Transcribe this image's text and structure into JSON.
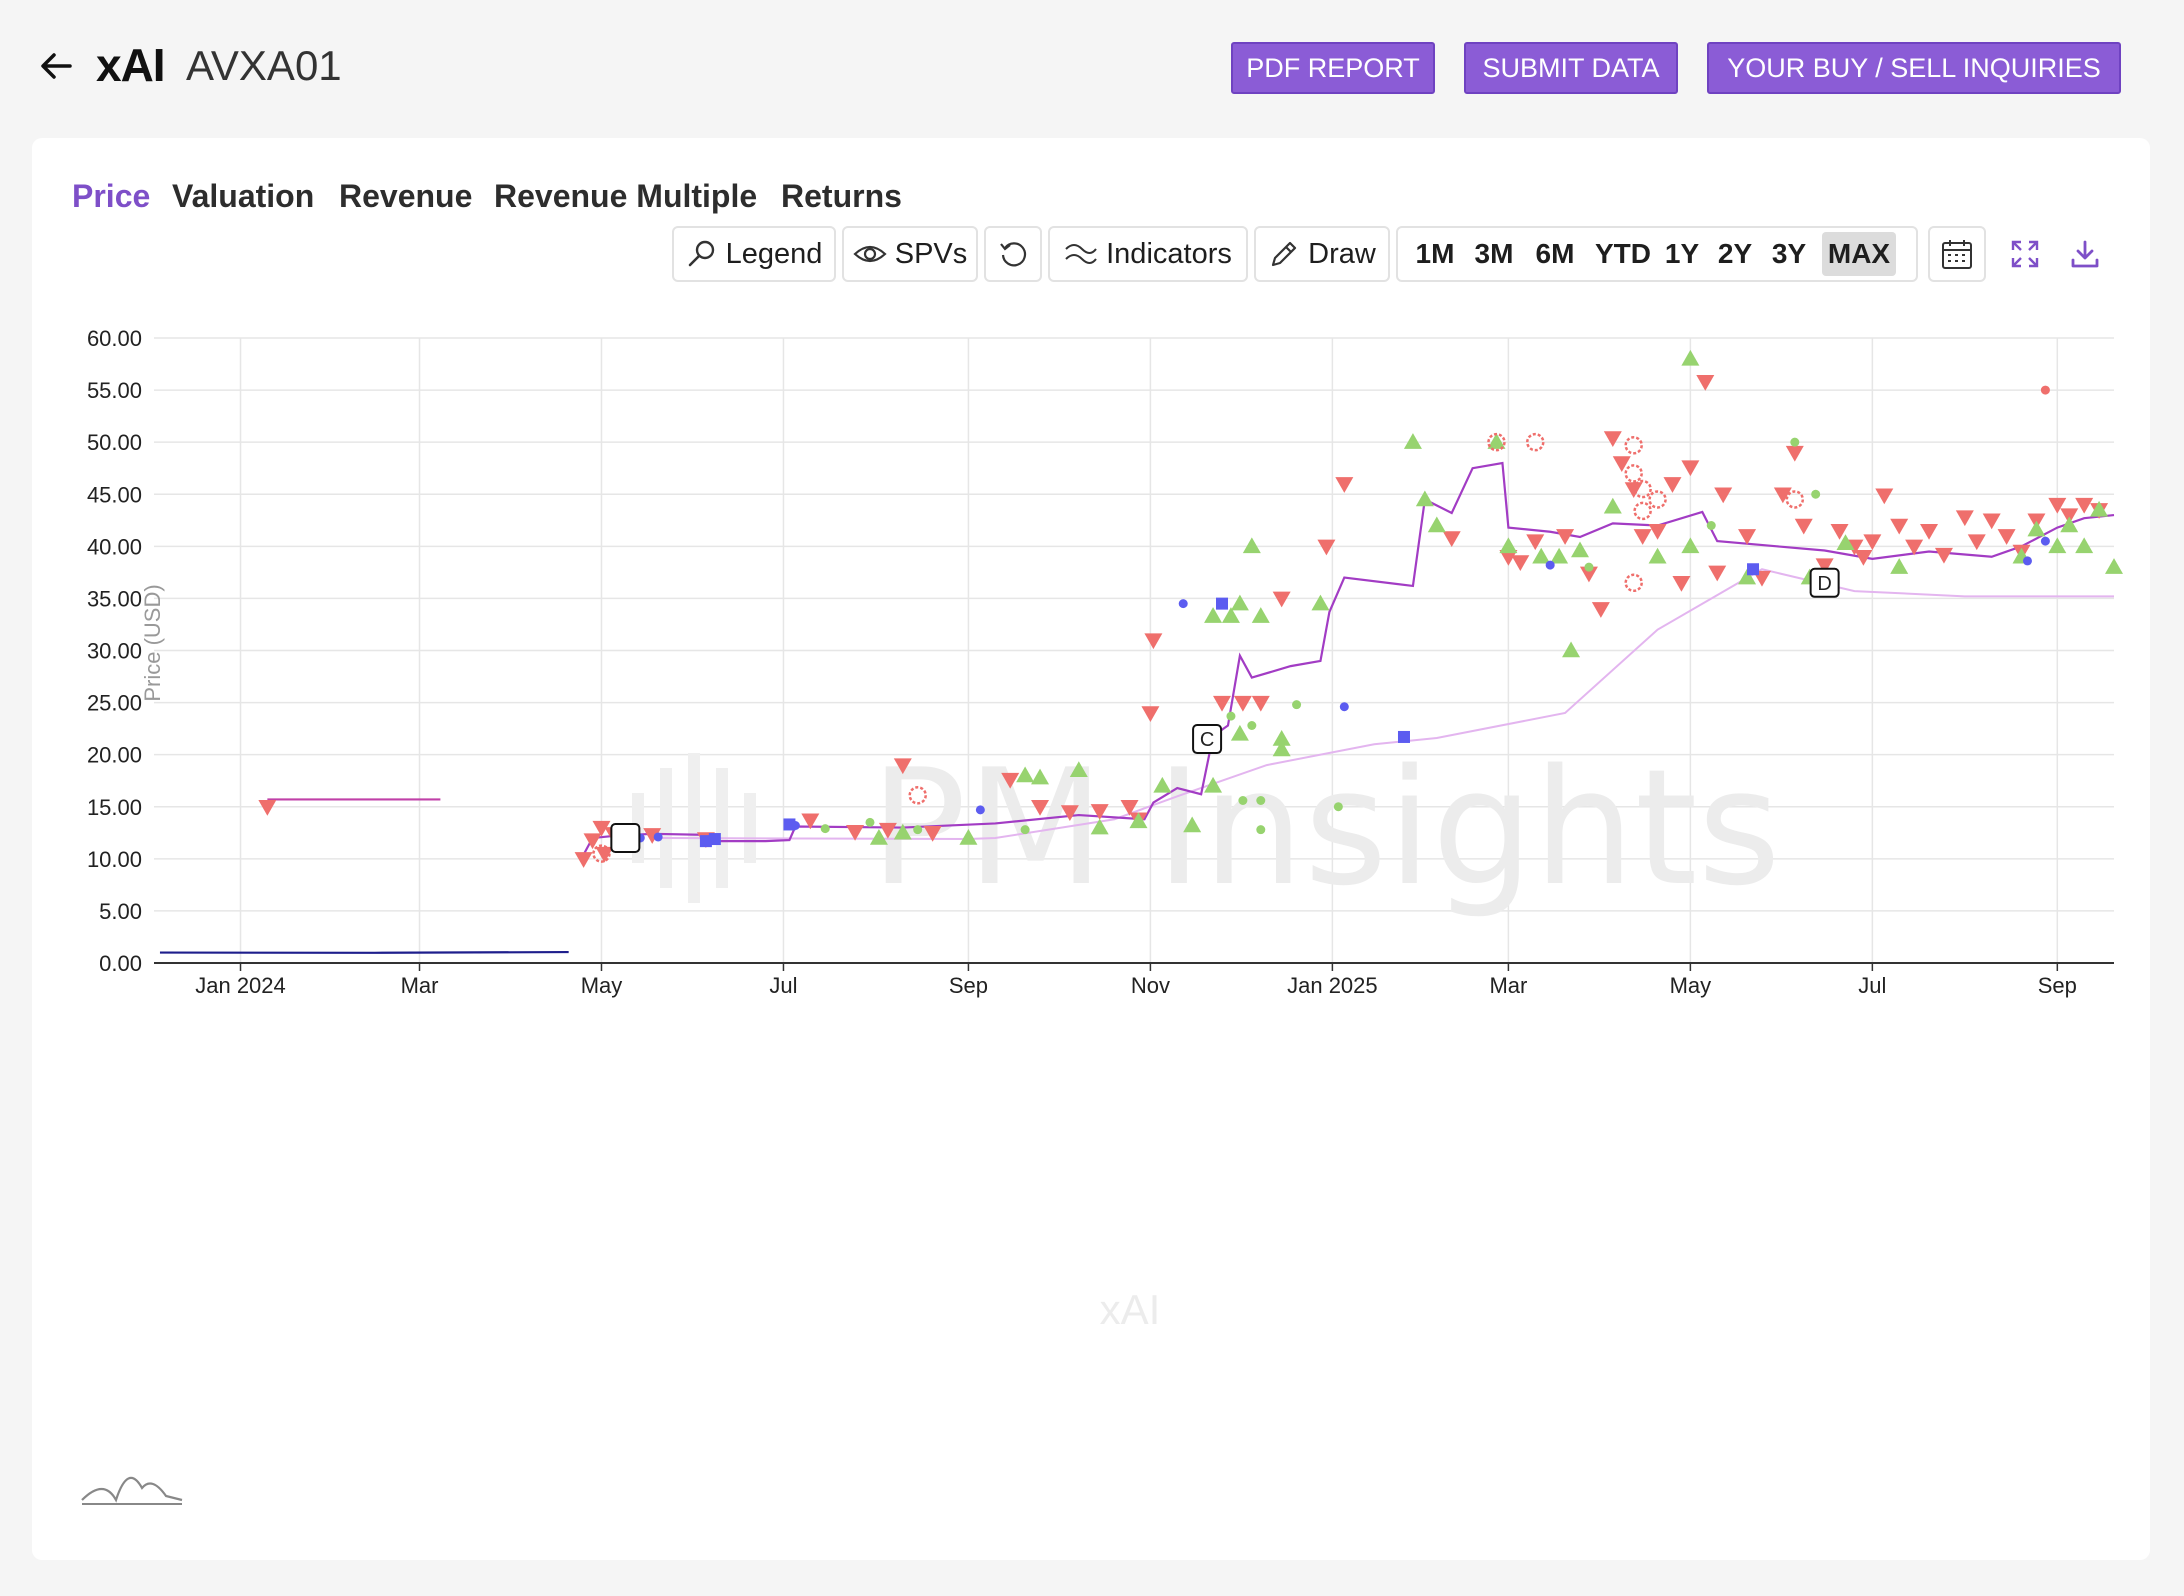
{
  "header": {
    "company": "xAI",
    "ticker": "AVXA01",
    "buttons": {
      "pdf_report": "PDF REPORT",
      "submit_data": "SUBMIT DATA",
      "inquiries": "YOUR BUY / SELL INQUIRIES"
    }
  },
  "tabs": [
    "Price",
    "Valuation",
    "Revenue",
    "Revenue Multiple",
    "Returns"
  ],
  "active_tab": "Price",
  "toolbar": {
    "legend": "Legend",
    "spvs": "SPVs",
    "indicators": "Indicators",
    "draw": "Draw",
    "ranges": [
      "1M",
      "3M",
      "6M",
      "YTD",
      "1Y",
      "2Y",
      "3Y",
      "MAX"
    ],
    "active_range": "MAX"
  },
  "colors": {
    "accent": "#7e4fc8",
    "button_bg": "#8b5cd6",
    "ask": "#ef6f6c",
    "bid": "#97d36f",
    "trade": "#5c5cf0",
    "price_line": "#a23cc4",
    "avg_line": "#e3b5ef",
    "early_line": "#c040a8",
    "baseline": "#1e1e8c"
  },
  "watermark": "PM Insights",
  "chart_data": {
    "type": "scatter",
    "ylabel": "Price (USD)",
    "x_label_bottom": "xAI",
    "ylim": [
      0,
      60
    ],
    "y_ticks": [
      "60.00",
      "55.00",
      "50.00",
      "45.00",
      "40.00",
      "35.00",
      "30.00",
      "25.00",
      "20.00",
      "15.00",
      "10.00",
      "5.00",
      "0.00"
    ],
    "x_ticks": [
      "Jan 2024",
      "Mar",
      "May",
      "Jul",
      "Sep",
      "Nov",
      "Jan 2025",
      "Mar",
      "May",
      "Jul",
      "Sep"
    ],
    "x_tick_dates": [
      "2024-01-01",
      "2024-03-01",
      "2024-05-01",
      "2024-07-01",
      "2024-09-01",
      "2024-11-01",
      "2025-01-01",
      "2025-03-01",
      "2025-05-01",
      "2025-07-01",
      "2025-09-01"
    ],
    "xlim": [
      "2023-12-03",
      "2025-09-20"
    ],
    "grid": true,
    "event_markers": [
      {
        "label": "",
        "date": "2024-05-09",
        "y": 12
      },
      {
        "label": "C",
        "date": "2024-11-20",
        "y": 21.5
      },
      {
        "label": "D",
        "date": "2025-06-15",
        "y": 36.5
      }
    ],
    "series": [
      {
        "kind": "line",
        "color": "baseline",
        "points": [
          [
            "2023-12-05",
            1.0
          ],
          [
            "2024-02-15",
            0.98
          ],
          [
            "2024-04-20",
            1.05
          ]
        ]
      },
      {
        "kind": "line",
        "color": "early_line",
        "points": [
          [
            "2024-01-10",
            15.7
          ],
          [
            "2024-03-08",
            15.7
          ]
        ]
      },
      {
        "kind": "line",
        "color": "avg_line",
        "points": [
          [
            "2024-05-20",
            12
          ],
          [
            "2024-09-01",
            11.9
          ],
          [
            "2024-09-10",
            12
          ],
          [
            "2024-10-20",
            13.8
          ],
          [
            "2024-11-10",
            16
          ],
          [
            "2024-12-10",
            19
          ],
          [
            "2025-01-15",
            21
          ],
          [
            "2025-02-05",
            21.6
          ],
          [
            "2025-03-20",
            24
          ],
          [
            "2025-04-20",
            32
          ],
          [
            "2025-05-25",
            37.8
          ],
          [
            "2025-06-25",
            35.7
          ],
          [
            "2025-08-01",
            35.2
          ],
          [
            "2025-09-20",
            35.2
          ]
        ]
      },
      {
        "kind": "line",
        "color": "price_line",
        "points": [
          [
            "2024-04-25",
            10.4
          ],
          [
            "2024-04-28",
            12
          ],
          [
            "2024-05-05",
            12.2
          ],
          [
            "2024-05-18",
            12.4
          ],
          [
            "2024-06-05",
            12.3
          ],
          [
            "2024-06-08",
            11.7
          ],
          [
            "2024-06-25",
            11.7
          ],
          [
            "2024-07-03",
            11.8
          ],
          [
            "2024-07-05",
            13.1
          ],
          [
            "2024-08-10",
            13.0
          ],
          [
            "2024-09-10",
            13.4
          ],
          [
            "2024-10-08",
            14.2
          ],
          [
            "2024-10-30",
            13.8
          ],
          [
            "2024-11-02",
            15.4
          ],
          [
            "2024-11-10",
            16.8
          ],
          [
            "2024-11-18",
            16.2
          ],
          [
            "2024-11-22",
            21.8
          ],
          [
            "2024-11-27",
            22.8
          ],
          [
            "2024-12-01",
            29.5
          ],
          [
            "2024-12-05",
            27.4
          ],
          [
            "2024-12-18",
            28.5
          ],
          [
            "2024-12-28",
            29
          ],
          [
            "2024-12-31",
            33.7
          ],
          [
            "2025-01-05",
            37
          ],
          [
            "2025-01-28",
            36.2
          ],
          [
            "2025-02-01",
            44.5
          ],
          [
            "2025-02-10",
            43.2
          ],
          [
            "2025-02-17",
            47.5
          ],
          [
            "2025-02-27",
            48
          ],
          [
            "2025-03-01",
            41.8
          ],
          [
            "2025-03-15",
            41.4
          ],
          [
            "2025-03-25",
            40.9
          ],
          [
            "2025-04-05",
            42.2
          ],
          [
            "2025-04-20",
            42.0
          ],
          [
            "2025-05-05",
            43.3
          ],
          [
            "2025-05-10",
            40.5
          ],
          [
            "2025-05-30",
            40.0
          ],
          [
            "2025-06-15",
            39.6
          ],
          [
            "2025-07-01",
            38.8
          ],
          [
            "2025-07-20",
            39.5
          ],
          [
            "2025-08-10",
            39.0
          ],
          [
            "2025-08-20",
            40.0
          ],
          [
            "2025-09-01",
            41.8
          ],
          [
            "2025-09-10",
            42.7
          ],
          [
            "2025-09-20",
            43.0
          ]
        ]
      },
      {
        "kind": "ask",
        "points": [
          [
            "2024-01-10",
            15
          ],
          [
            "2024-04-25",
            10
          ],
          [
            "2024-04-28",
            11.8
          ],
          [
            "2024-05-01",
            13
          ],
          [
            "2024-05-02",
            10.5
          ],
          [
            "2024-05-05",
            12.4
          ],
          [
            "2024-05-18",
            12.3
          ],
          [
            "2024-06-05",
            11.9
          ],
          [
            "2024-07-10",
            13.7
          ],
          [
            "2024-07-25",
            12.6
          ],
          [
            "2024-08-05",
            12.8
          ],
          [
            "2024-08-10",
            19
          ],
          [
            "2024-08-20",
            12.5
          ],
          [
            "2024-09-15",
            17.6
          ],
          [
            "2024-09-25",
            15
          ],
          [
            "2024-10-05",
            14.5
          ],
          [
            "2024-10-15",
            14.6
          ],
          [
            "2024-10-25",
            15
          ],
          [
            "2024-10-28",
            13.8
          ],
          [
            "2024-11-01",
            24
          ],
          [
            "2024-11-02",
            31
          ],
          [
            "2024-11-25",
            25
          ],
          [
            "2024-12-02",
            25
          ],
          [
            "2024-12-08",
            25
          ],
          [
            "2024-12-15",
            35
          ],
          [
            "2024-12-30",
            40
          ],
          [
            "2025-01-05",
            46
          ],
          [
            "2025-02-10",
            40.8
          ],
          [
            "2025-03-01",
            39
          ],
          [
            "2025-03-05",
            38.5
          ],
          [
            "2025-03-10",
            40.5
          ],
          [
            "2025-03-20",
            41
          ],
          [
            "2025-03-28",
            37.4
          ],
          [
            "2025-04-01",
            34
          ],
          [
            "2025-04-05",
            50.4
          ],
          [
            "2025-04-08",
            48
          ],
          [
            "2025-04-12",
            45.5
          ],
          [
            "2025-04-15",
            41
          ],
          [
            "2025-04-20",
            41.5
          ],
          [
            "2025-04-25",
            46
          ],
          [
            "2025-04-28",
            36.5
          ],
          [
            "2025-05-01",
            47.6
          ],
          [
            "2025-05-06",
            55.8
          ],
          [
            "2025-05-10",
            37.5
          ],
          [
            "2025-05-12",
            45
          ],
          [
            "2025-05-20",
            41
          ],
          [
            "2025-05-25",
            37
          ],
          [
            "2025-06-01",
            45
          ],
          [
            "2025-06-05",
            49
          ],
          [
            "2025-06-08",
            42
          ],
          [
            "2025-06-15",
            38.2
          ],
          [
            "2025-06-20",
            41.5
          ],
          [
            "2025-06-25",
            40
          ],
          [
            "2025-06-28",
            39
          ],
          [
            "2025-07-01",
            40.5
          ],
          [
            "2025-07-05",
            44.9
          ],
          [
            "2025-07-10",
            42
          ],
          [
            "2025-07-15",
            40
          ],
          [
            "2025-07-20",
            41.5
          ],
          [
            "2025-07-25",
            39.2
          ],
          [
            "2025-08-01",
            42.8
          ],
          [
            "2025-08-05",
            40.5
          ],
          [
            "2025-08-10",
            42.5
          ],
          [
            "2025-08-15",
            41
          ],
          [
            "2025-08-20",
            39.5
          ],
          [
            "2025-08-25",
            42.5
          ],
          [
            "2025-09-01",
            44
          ],
          [
            "2025-09-05",
            43
          ],
          [
            "2025-09-10",
            44
          ],
          [
            "2025-09-15",
            43.5
          ]
        ]
      },
      {
        "kind": "bid",
        "points": [
          [
            "2024-08-02",
            12
          ],
          [
            "2024-08-10",
            12.5
          ],
          [
            "2024-09-01",
            12
          ],
          [
            "2024-09-20",
            18
          ],
          [
            "2024-09-25",
            17.8
          ],
          [
            "2024-10-08",
            18.5
          ],
          [
            "2024-10-15",
            13
          ],
          [
            "2024-10-28",
            13.6
          ],
          [
            "2024-11-05",
            17
          ],
          [
            "2024-11-15",
            13.2
          ],
          [
            "2024-11-22",
            17
          ],
          [
            "2024-11-22",
            33.3
          ],
          [
            "2024-11-28",
            33.3
          ],
          [
            "2024-12-01",
            34.5
          ],
          [
            "2024-12-01",
            22
          ],
          [
            "2024-12-08",
            33.3
          ],
          [
            "2024-12-05",
            40
          ],
          [
            "2024-12-15",
            21.5
          ],
          [
            "2024-12-15",
            20.5
          ],
          [
            "2024-12-28",
            34.5
          ],
          [
            "2025-01-28",
            50
          ],
          [
            "2025-02-01",
            44.5
          ],
          [
            "2025-02-05",
            42
          ],
          [
            "2025-02-25",
            50
          ],
          [
            "2025-03-01",
            40
          ],
          [
            "2025-03-12",
            39
          ],
          [
            "2025-03-18",
            39
          ],
          [
            "2025-03-22",
            30
          ],
          [
            "2025-03-25",
            39.6
          ],
          [
            "2025-04-05",
            43.8
          ],
          [
            "2025-04-20",
            39
          ],
          [
            "2025-05-01",
            40
          ],
          [
            "2025-05-01",
            58
          ],
          [
            "2025-05-20",
            37
          ],
          [
            "2025-06-10",
            37
          ],
          [
            "2025-06-22",
            40.3
          ],
          [
            "2025-07-10",
            38
          ],
          [
            "2025-08-20",
            39
          ],
          [
            "2025-08-25",
            41.6
          ],
          [
            "2025-09-01",
            40
          ],
          [
            "2025-09-05",
            42
          ],
          [
            "2025-09-10",
            40
          ],
          [
            "2025-09-15",
            43.5
          ],
          [
            "2025-09-20",
            38
          ]
        ]
      },
      {
        "kind": "trade",
        "points": [
          [
            "2024-05-10",
            12.1
          ],
          [
            "2024-06-05",
            11.7
          ],
          [
            "2024-06-08",
            11.9
          ],
          [
            "2024-07-03",
            13.3
          ],
          [
            "2024-11-25",
            34.5
          ],
          [
            "2025-05-22",
            37.8
          ],
          [
            "2025-01-25",
            21.7
          ]
        ]
      },
      {
        "kind": "trade_dot",
        "points": [
          [
            "2024-05-14",
            12
          ],
          [
            "2024-05-20",
            12.1
          ],
          [
            "2024-07-05",
            13.2
          ],
          [
            "2024-09-05",
            14.7
          ],
          [
            "2024-11-12",
            34.5
          ],
          [
            "2024-11-20",
            21.8
          ],
          [
            "2025-01-05",
            24.6
          ],
          [
            "2025-03-15",
            38.2
          ],
          [
            "2025-08-22",
            38.6
          ],
          [
            "2025-08-28",
            40.5
          ]
        ]
      },
      {
        "kind": "bid_dot",
        "points": [
          [
            "2024-07-15",
            12.9
          ],
          [
            "2024-07-30",
            13.5
          ],
          [
            "2024-08-15",
            12.8
          ],
          [
            "2024-09-20",
            12.8
          ],
          [
            "2024-11-28",
            23.7
          ],
          [
            "2024-12-05",
            22.8
          ],
          [
            "2024-12-02",
            15.6
          ],
          [
            "2024-12-08",
            15.6
          ],
          [
            "2024-12-08",
            12.8
          ],
          [
            "2024-12-20",
            24.8
          ],
          [
            "2025-01-03",
            15
          ],
          [
            "2025-03-28",
            38
          ],
          [
            "2025-05-08",
            42
          ],
          [
            "2025-06-05",
            50
          ],
          [
            "2025-06-12",
            45
          ]
        ]
      },
      {
        "kind": "ask_dot",
        "points": [
          [
            "2025-08-28",
            55
          ]
        ]
      },
      {
        "kind": "ask_burst",
        "points": [
          [
            "2024-05-01",
            10.5
          ],
          [
            "2024-08-15",
            16.1
          ],
          [
            "2025-02-25",
            50
          ],
          [
            "2025-03-10",
            50
          ],
          [
            "2025-04-12",
            49.7
          ],
          [
            "2025-04-12",
            47
          ],
          [
            "2025-04-15",
            45.5
          ],
          [
            "2025-04-15",
            43.4
          ],
          [
            "2025-04-12",
            36.5
          ],
          [
            "2025-04-20",
            44.5
          ],
          [
            "2025-06-05",
            44.5
          ]
        ]
      }
    ]
  }
}
